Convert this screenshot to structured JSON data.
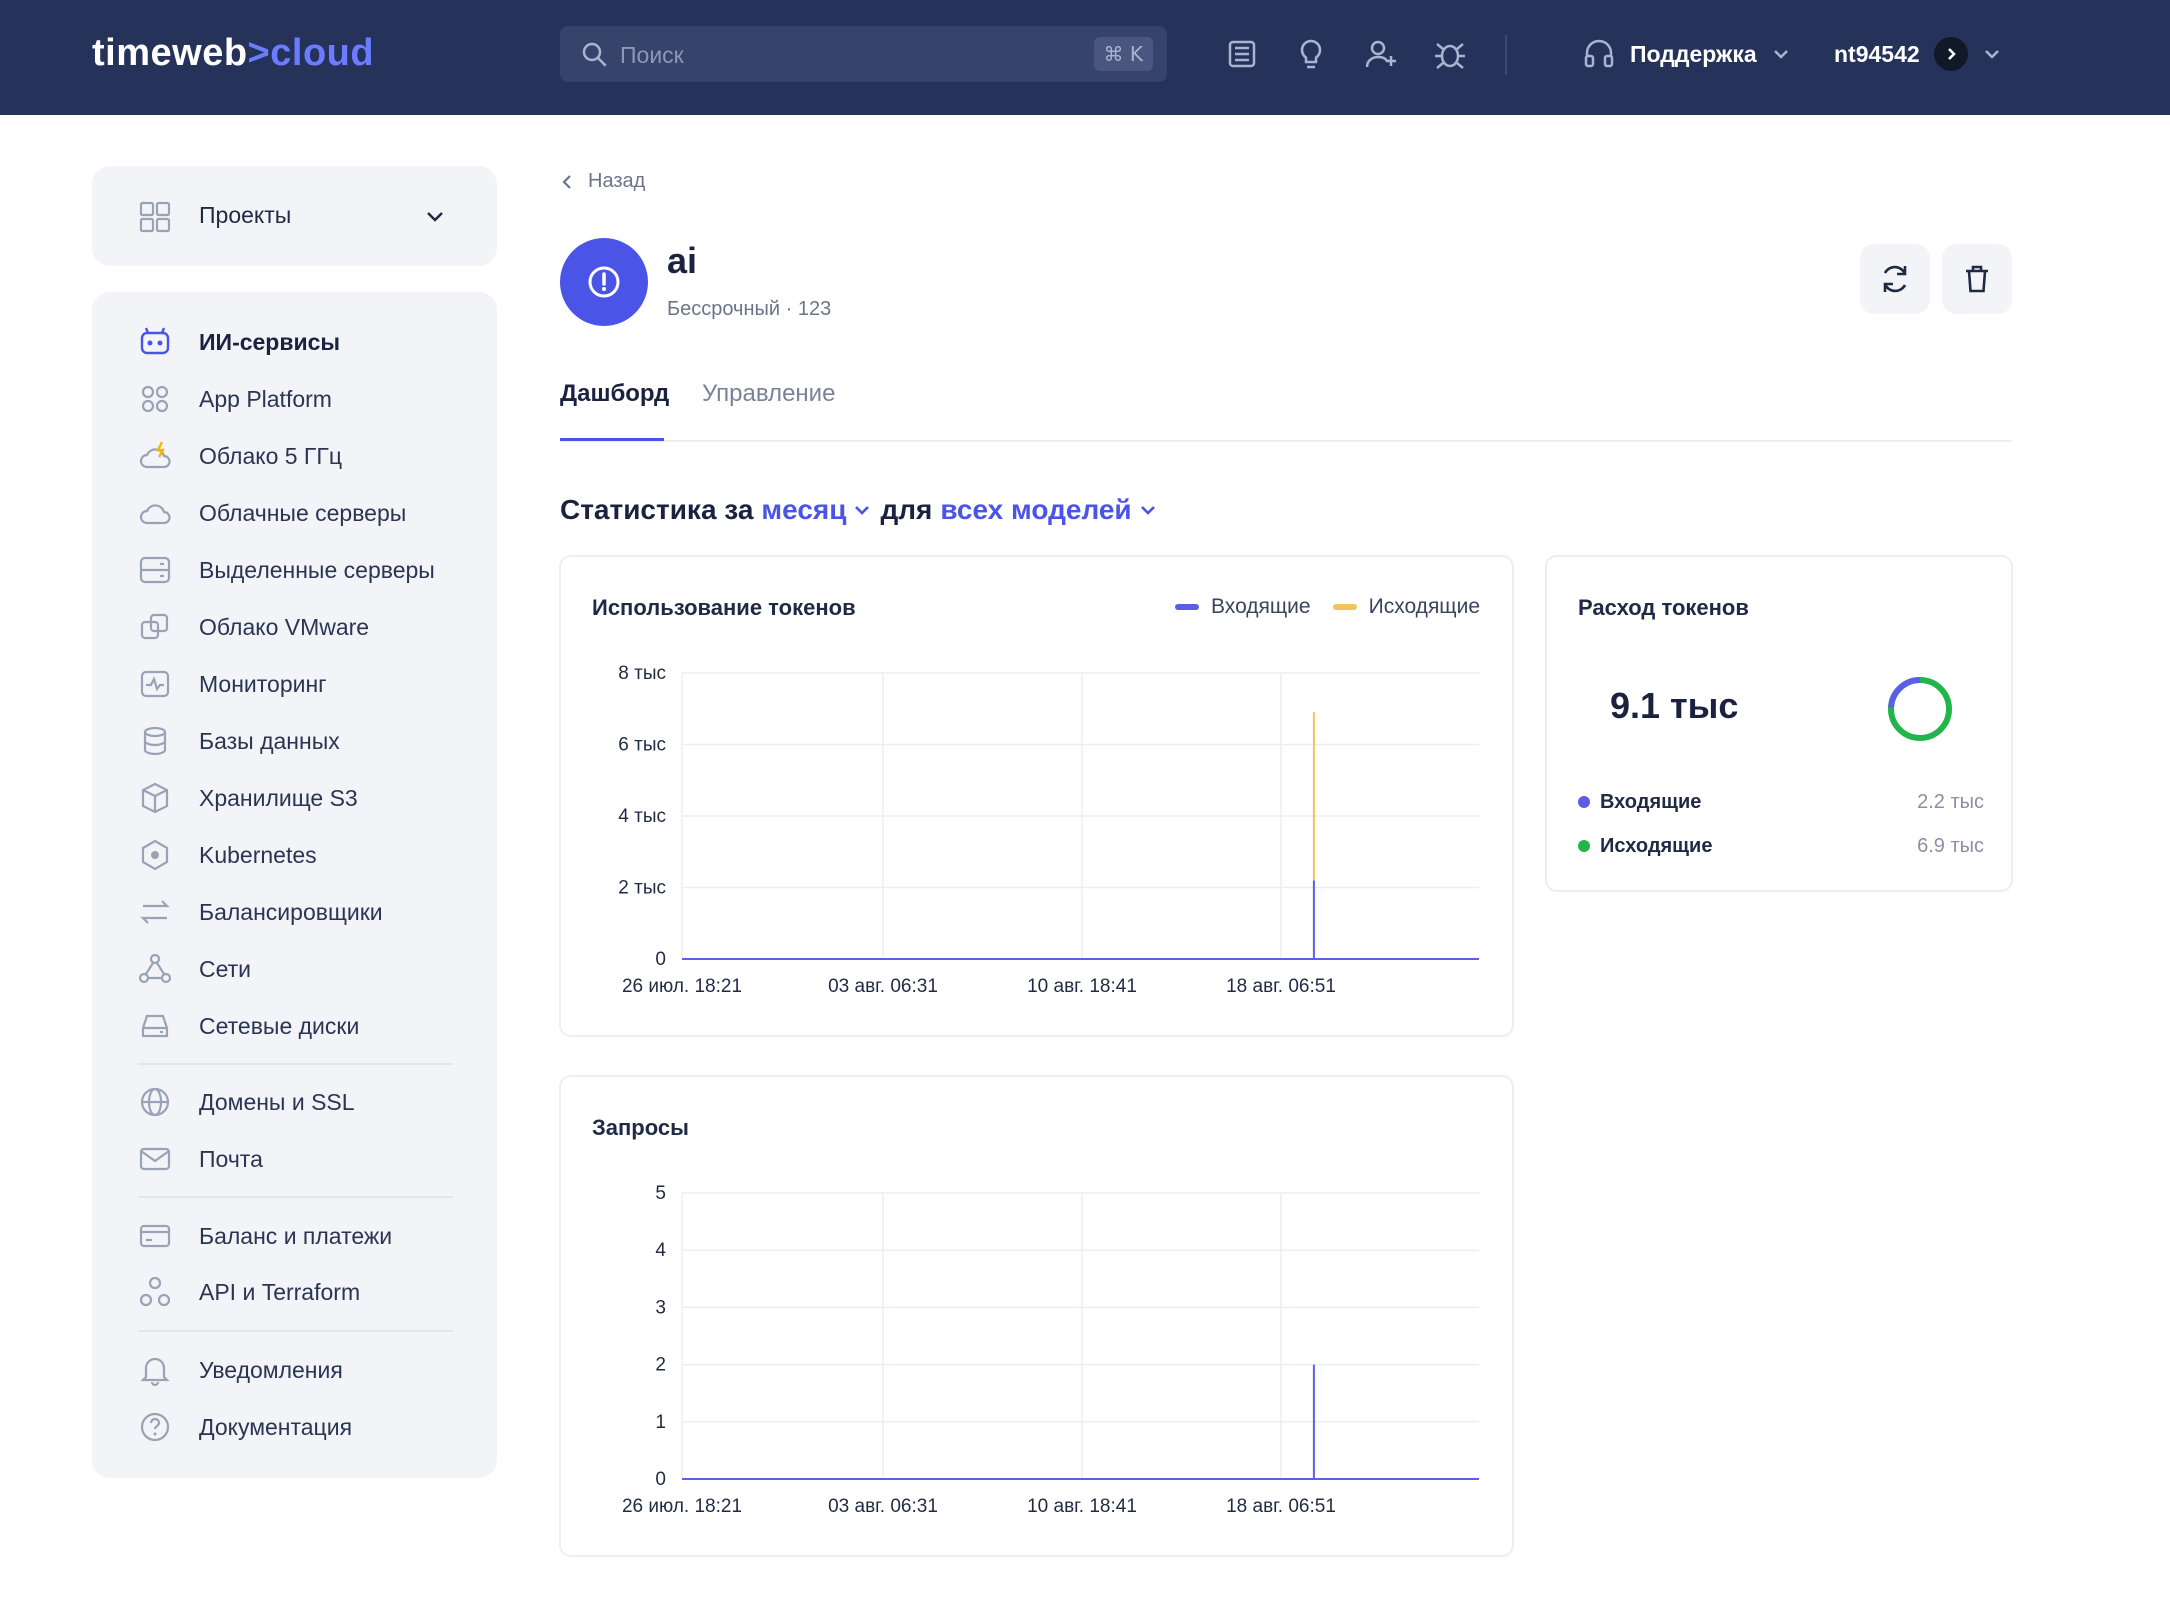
{
  "brand": {
    "part1": "timeweb",
    "sep": ">",
    "part2": "cloud"
  },
  "search": {
    "placeholder": "Поиск",
    "shortcut": "⌘ K"
  },
  "header": {
    "support_label": "Поддержка",
    "username": "nt94542"
  },
  "sidebar": {
    "projects_label": "Проекты",
    "items": [
      {
        "label": "ИИ-сервисы",
        "icon": "bot-icon"
      },
      {
        "label": "App Platform",
        "icon": "grid-icon"
      },
      {
        "label": "Облако 5 ГГц",
        "icon": "cloud-bolt-icon"
      },
      {
        "label": "Облачные серверы",
        "icon": "cloud-icon"
      },
      {
        "label": "Выделенные серверы",
        "icon": "server-icon"
      },
      {
        "label": "Облако VMware",
        "icon": "vmware-icon"
      },
      {
        "label": "Мониторинг",
        "icon": "monitor-icon"
      },
      {
        "label": "Базы данных",
        "icon": "database-icon"
      },
      {
        "label": "Хранилище S3",
        "icon": "box-icon"
      },
      {
        "label": "Kubernetes",
        "icon": "kubernetes-icon"
      },
      {
        "label": "Балансировщики",
        "icon": "balancer-icon"
      },
      {
        "label": "Сети",
        "icon": "network-icon"
      },
      {
        "label": "Сетевые диски",
        "icon": "disk-icon"
      },
      {
        "label": "Домены и SSL",
        "icon": "globe-icon"
      },
      {
        "label": "Почта",
        "icon": "mail-icon"
      },
      {
        "label": "Баланс и платежи",
        "icon": "card-icon"
      },
      {
        "label": "API и Terraform",
        "icon": "api-icon"
      },
      {
        "label": "Уведомления",
        "icon": "bell-icon"
      },
      {
        "label": "Документация",
        "icon": "help-icon"
      }
    ]
  },
  "page": {
    "back_label": "Назад",
    "title": "ai",
    "subtitle": "Бессрочный · 123",
    "tabs": [
      "Дашборд",
      "Управление"
    ],
    "stats": {
      "prefix": "Статистика за",
      "period": "месяц",
      "middle": "для",
      "models": "всех моделей"
    }
  },
  "token_usage": {
    "title": "Использование токенов",
    "legend_in": "Входящие",
    "legend_out": "Исходящие"
  },
  "token_spend": {
    "title": "Расход токенов",
    "total": "9.1 тыс",
    "in_label": "Входящие",
    "in_value": "2.2 тыс",
    "out_label": "Исходящие",
    "out_value": "6.9 тыс"
  },
  "requests": {
    "title": "Запросы"
  },
  "colors": {
    "accent": "#4a55e8",
    "incoming": "#5b5fe6",
    "outgoing": "#f0c55a",
    "outgoing_dot": "#22b54b",
    "header_bg": "#25325a"
  },
  "chart_data": [
    {
      "type": "area",
      "title": "Использование токенов",
      "x_ticks": [
        "26 июл. 18:21",
        "03 авг. 06:31",
        "10 авг. 18:41",
        "18 авг. 06:51"
      ],
      "y_ticks": [
        "0",
        "2 тыс",
        "4 тыс",
        "6 тыс",
        "8 тыс"
      ],
      "ylim": [
        0,
        8000
      ],
      "x_range_days": [
        0,
        28
      ],
      "series": [
        {
          "name": "Входящие",
          "points": [
            {
              "x_day": 0,
              "y": 0
            },
            {
              "x_day": 22.2,
              "y": 0
            },
            {
              "x_day": 22.2,
              "y": 2200
            },
            {
              "x_day": 22.2,
              "y": 0
            },
            {
              "x_day": 28,
              "y": 0
            }
          ]
        },
        {
          "name": "Исходящие",
          "points": [
            {
              "x_day": 22.2,
              "y": 2200
            },
            {
              "x_day": 22.2,
              "y": 6900
            }
          ]
        }
      ],
      "grid": true,
      "legend": "top-right"
    },
    {
      "type": "line",
      "title": "Запросы",
      "x_ticks": [
        "26 июл. 18:21",
        "03 авг. 06:31",
        "10 авг. 18:41",
        "18 авг. 06:51"
      ],
      "y_ticks": [
        "0",
        "1",
        "2",
        "3",
        "4",
        "5"
      ],
      "ylim": [
        0,
        5
      ],
      "x_range_days": [
        0,
        28
      ],
      "series": [
        {
          "points": [
            {
              "x_day": 0,
              "y": 0
            },
            {
              "x_day": 22.2,
              "y": 0
            },
            {
              "x_day": 22.2,
              "y": 2
            },
            {
              "x_day": 22.2,
              "y": 0
            },
            {
              "x_day": 28,
              "y": 0
            }
          ]
        }
      ],
      "grid": true
    }
  ]
}
